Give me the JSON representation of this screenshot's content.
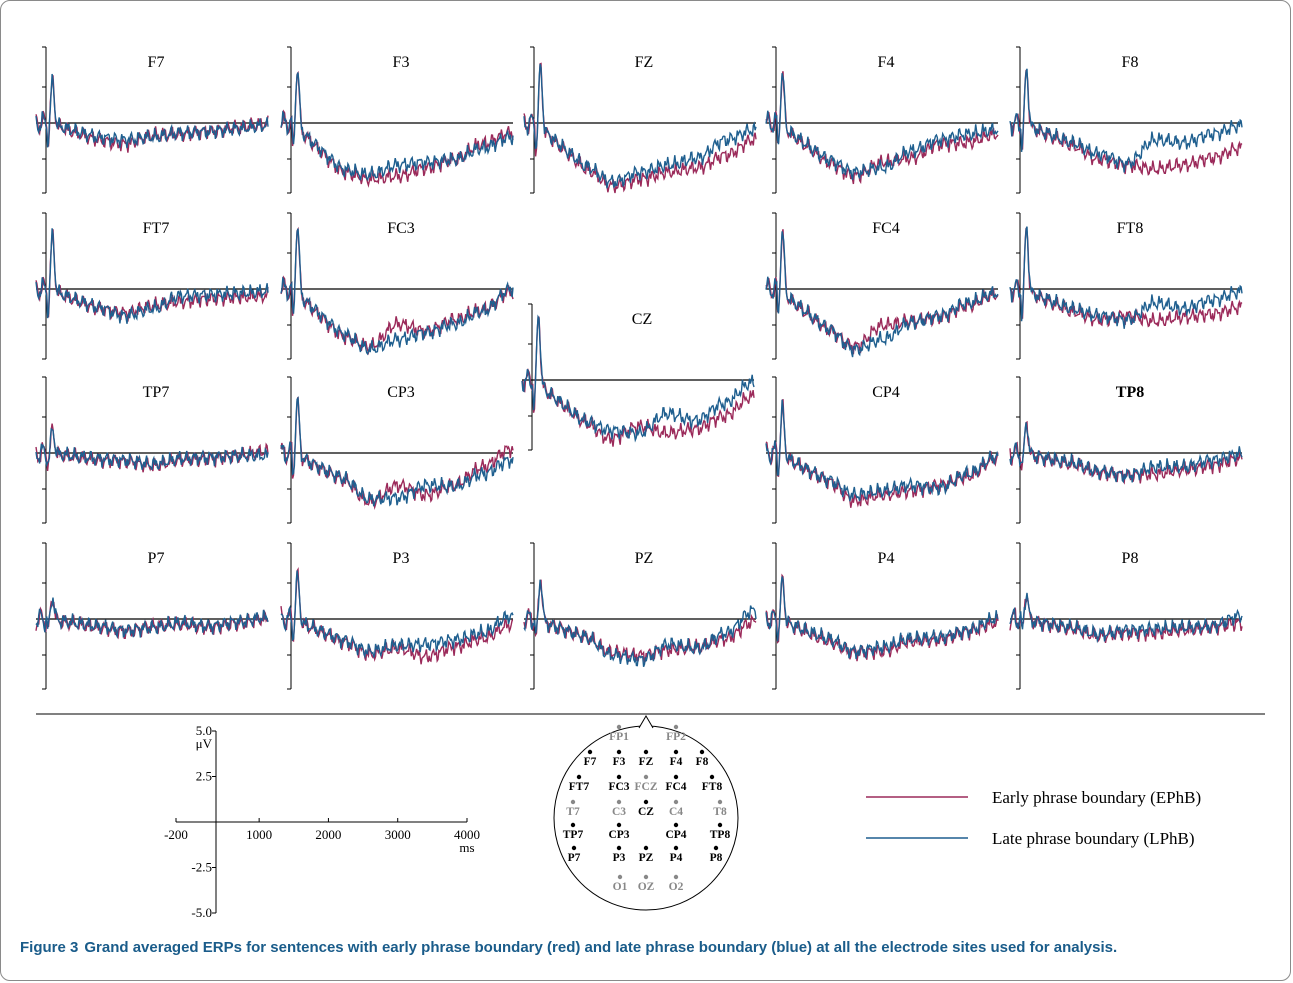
{
  "chart_data": {
    "type": "line",
    "title": "",
    "series": [
      {
        "name": "Early phrase boundary (EPhB)",
        "color": "#9b2a5a"
      },
      {
        "name": "Late phrase boundary (LPhB)",
        "color": "#1f5f8f"
      }
    ],
    "time_range_ms": [
      -200,
      4000
    ],
    "amplitude_range_uv": [
      -5.0,
      5.0
    ],
    "panels": [
      {
        "id": "F7",
        "peak": 3.2,
        "early": [
          -1.2,
          -1.5,
          -0.9,
          -0.8,
          -0.6,
          -0.3,
          -0.1
        ],
        "late": [
          -1.0,
          -1.2,
          -1.0,
          -0.7,
          -0.6,
          -0.4,
          -0.2
        ]
      },
      {
        "id": "F3",
        "peak": 4.2,
        "early": [
          -3.5,
          -4.0,
          -3.8,
          -3.2,
          -2.6,
          -1.5,
          -0.7
        ],
        "late": [
          -3.3,
          -3.7,
          -3.0,
          -2.8,
          -2.6,
          -1.8,
          -1.0
        ]
      },
      {
        "id": "FZ",
        "peak": 4.4,
        "early": [
          -3.3,
          -4.5,
          -4.0,
          -3.5,
          -3.2,
          -2.3,
          -1.2
        ],
        "late": [
          -3.1,
          -4.2,
          -3.5,
          -3.0,
          -2.5,
          -1.2,
          -0.5
        ]
      },
      {
        "id": "F4",
        "peak": 3.8,
        "early": [
          -2.8,
          -3.8,
          -2.8,
          -2.5,
          -1.5,
          -1.4,
          -0.8
        ],
        "late": [
          -2.6,
          -3.5,
          -3.2,
          -2.0,
          -1.2,
          -0.8,
          -0.5
        ]
      },
      {
        "id": "F8",
        "peak": 4.0,
        "early": [
          -1.6,
          -2.6,
          -3.0,
          -3.3,
          -3.0,
          -2.5,
          -1.8
        ],
        "late": [
          -1.4,
          -2.2,
          -2.9,
          -1.2,
          -1.4,
          -0.8,
          -0.2
        ]
      },
      {
        "id": "FT7",
        "peak": 4.1,
        "early": [
          -1.4,
          -1.7,
          -1.2,
          -0.9,
          -0.7,
          -0.6,
          -0.5
        ],
        "late": [
          -1.3,
          -1.9,
          -1.4,
          -0.5,
          -0.4,
          -0.3,
          -0.2
        ]
      },
      {
        "id": "FC3",
        "peak": 4.9,
        "early": [
          -3.4,
          -4.1,
          -2.5,
          -3.0,
          -2.2,
          -1.5,
          -0.2
        ],
        "late": [
          -3.2,
          -4.3,
          -3.6,
          -3.1,
          -2.5,
          -1.6,
          0.0
        ]
      },
      {
        "id": "CZ",
        "peak": 5.0,
        "early": [
          -3.0,
          -4.2,
          -3.3,
          -3.8,
          -3.5,
          -2.6,
          -1.2
        ],
        "late": [
          -2.9,
          -3.6,
          -3.8,
          -2.4,
          -2.9,
          -1.7,
          -0.2
        ]
      },
      {
        "id": "FC4",
        "peak": 4.4,
        "early": [
          -2.9,
          -4.1,
          -2.6,
          -2.3,
          -2.0,
          -1.2,
          -0.4
        ],
        "late": [
          -2.8,
          -4.3,
          -3.6,
          -2.4,
          -1.9,
          -1.0,
          -0.3
        ]
      },
      {
        "id": "FT8",
        "peak": 4.6,
        "early": [
          -1.6,
          -2.2,
          -1.9,
          -2.3,
          -2.0,
          -1.8,
          -1.3
        ],
        "late": [
          -1.4,
          -1.9,
          -2.2,
          -1.0,
          -1.4,
          -0.8,
          -0.2
        ]
      },
      {
        "id": "TP7",
        "peak": 1.8,
        "early": [
          -0.5,
          -0.6,
          -0.9,
          -0.5,
          -0.4,
          -0.2,
          0.1
        ],
        "late": [
          -0.4,
          -0.5,
          -0.8,
          -0.4,
          -0.3,
          -0.2,
          -0.2
        ]
      },
      {
        "id": "CP3",
        "peak": 4.0,
        "early": [
          -1.9,
          -3.5,
          -2.3,
          -3.0,
          -2.3,
          -1.0,
          0.3
        ],
        "late": [
          -1.8,
          -3.3,
          -3.2,
          -2.3,
          -2.4,
          -1.5,
          -0.5
        ]
      },
      {
        "id": "CP4",
        "peak": 3.5,
        "early": [
          -2.0,
          -3.4,
          -3.0,
          -2.7,
          -2.3,
          -1.7,
          -0.4
        ],
        "late": [
          -1.9,
          -3.0,
          -2.7,
          -2.3,
          -2.5,
          -1.5,
          -0.3
        ]
      },
      {
        "id": "TP8",
        "peak": 2.2,
        "early": [
          -0.8,
          -1.4,
          -1.6,
          -1.5,
          -1.2,
          -0.9,
          -0.4
        ],
        "late": [
          -0.7,
          -1.3,
          -1.6,
          -1.0,
          -1.0,
          -0.5,
          -0.1
        ]
      },
      {
        "id": "P7",
        "peak": 1.6,
        "early": [
          -0.6,
          -0.9,
          -0.5,
          -0.4,
          -0.6,
          -0.3,
          0.0
        ],
        "late": [
          -0.5,
          -0.8,
          -0.6,
          -0.3,
          -0.5,
          -0.2,
          0.1
        ]
      },
      {
        "id": "P3",
        "peak": 3.3,
        "early": [
          -1.6,
          -2.5,
          -2.1,
          -2.7,
          -2.0,
          -1.4,
          -0.4
        ],
        "late": [
          -1.5,
          -2.3,
          -1.9,
          -1.8,
          -1.5,
          -1.0,
          0.2
        ]
      },
      {
        "id": "PZ",
        "peak": 3.0,
        "early": [
          -1.3,
          -2.4,
          -2.6,
          -2.2,
          -2.0,
          -1.4,
          -0.2
        ],
        "late": [
          -1.3,
          -2.6,
          -2.9,
          -1.8,
          -2.1,
          -1.0,
          0.6
        ]
      },
      {
        "id": "P4",
        "peak": 3.0,
        "early": [
          -1.6,
          -2.4,
          -2.3,
          -1.6,
          -1.5,
          -0.9,
          -0.3
        ],
        "late": [
          -1.4,
          -2.3,
          -2.0,
          -1.4,
          -1.3,
          -0.8,
          0.0
        ]
      },
      {
        "id": "P8",
        "peak": 1.9,
        "early": [
          -0.7,
          -1.2,
          -1.0,
          -1.0,
          -0.8,
          -0.6,
          -0.3
        ],
        "late": [
          -0.6,
          -1.1,
          -0.8,
          -0.7,
          -0.6,
          -0.5,
          0.2
        ]
      }
    ],
    "scale": {
      "y_ticks": [
        "5.0",
        "2.5",
        "-2.5",
        "-5.0"
      ],
      "y_unit": "μV",
      "x_ticks": [
        "-200",
        "1000",
        "2000",
        "3000",
        "4000"
      ],
      "x_unit": "ms"
    },
    "montage": {
      "electrodes": [
        {
          "label": "FP1",
          "used": false
        },
        {
          "label": "FP2",
          "used": false
        },
        {
          "label": "F7",
          "used": true
        },
        {
          "label": "F3",
          "used": true
        },
        {
          "label": "FZ",
          "used": true
        },
        {
          "label": "F4",
          "used": true
        },
        {
          "label": "F8",
          "used": true
        },
        {
          "label": "FT7",
          "used": true
        },
        {
          "label": "FC3",
          "used": true
        },
        {
          "label": "FCZ",
          "used": false
        },
        {
          "label": "FC4",
          "used": true
        },
        {
          "label": "FT8",
          "used": true
        },
        {
          "label": "T7",
          "used": false
        },
        {
          "label": "C3",
          "used": false
        },
        {
          "label": "CZ",
          "used": true
        },
        {
          "label": "C4",
          "used": false
        },
        {
          "label": "T8",
          "used": false
        },
        {
          "label": "TP7",
          "used": true
        },
        {
          "label": "CP3",
          "used": true
        },
        {
          "label": "CP4",
          "used": true
        },
        {
          "label": "TP8",
          "used": true
        },
        {
          "label": "P7",
          "used": true
        },
        {
          "label": "P3",
          "used": true
        },
        {
          "label": "PZ",
          "used": true
        },
        {
          "label": "P4",
          "used": true
        },
        {
          "label": "P8",
          "used": true
        },
        {
          "label": "O1",
          "used": false
        },
        {
          "label": "OZ",
          "used": false
        },
        {
          "label": "O2",
          "used": false
        }
      ]
    },
    "legend": {
      "position": "bottom-right"
    }
  },
  "caption": {
    "label": "Figure 3",
    "text": "Grand averaged ERPs for sentences with early phrase boundary (red) and late phrase boundary (blue) at all the electrode sites used for analysis."
  }
}
